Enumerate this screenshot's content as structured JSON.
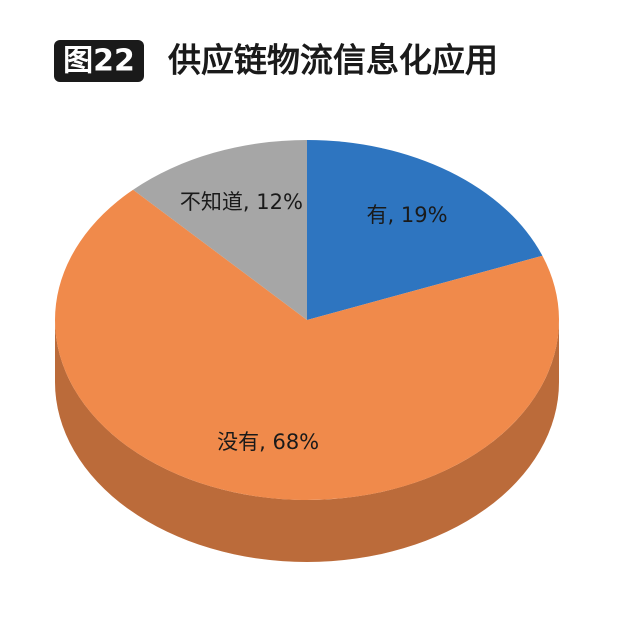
{
  "chart_data": {
    "type": "pie",
    "figure_number": "图22",
    "title": "供应链物流信息化应用",
    "categories": [
      "有",
      "没有",
      "不知道"
    ],
    "values": [
      19,
      68,
      12
    ],
    "value_labels": [
      "有, 19%",
      "没有, 68%",
      "不知道, 12%"
    ],
    "colors": [
      "#2e75c0",
      "#f08a4b",
      "#a6a6a6"
    ]
  }
}
